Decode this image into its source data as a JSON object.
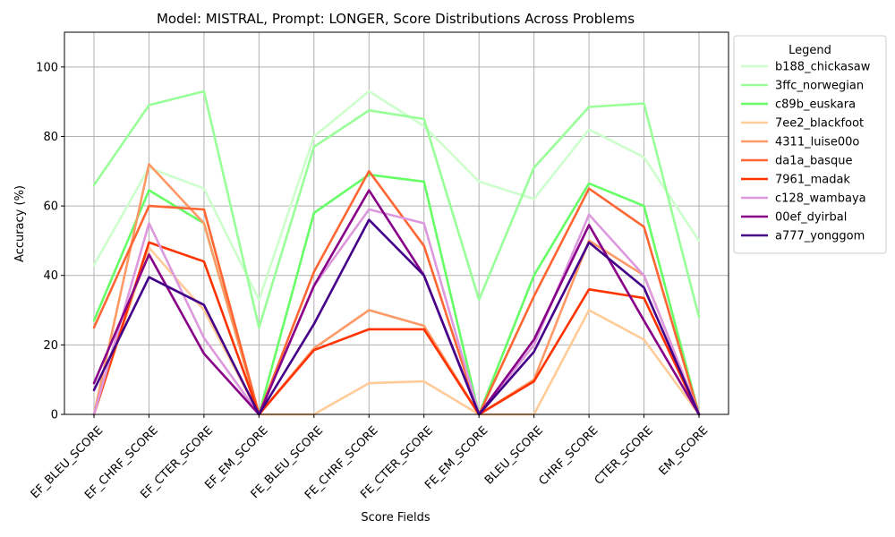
{
  "chart_data": {
    "type": "line",
    "title": "Model: MISTRAL, Prompt: LONGER, Score Distributions Across Problems",
    "xlabel": "Score Fields",
    "ylabel": "Accuracy (%)",
    "ylim": [
      0,
      110
    ],
    "yticks": [
      0,
      20,
      40,
      60,
      80,
      100
    ],
    "grid": true,
    "legend": {
      "title": "Legend",
      "placement": "outside-right"
    },
    "categories": [
      "EF_BLEU_SCORE",
      "EF_CHRF_SCORE",
      "EF_CTER_SCORE",
      "EF_EM_SCORE",
      "FE_BLEU_SCORE",
      "FE_CHRF_SCORE",
      "FE_CTER_SCORE",
      "FE_EM_SCORE",
      "BLEU_SCORE",
      "CHRF_SCORE",
      "CTER_SCORE",
      "EM_SCORE"
    ],
    "series": [
      {
        "name": "b188_chickasaw",
        "color": "#ccffcc",
        "values": [
          43,
          71,
          65,
          33,
          80,
          93,
          83,
          67,
          62,
          82,
          74,
          50
        ]
      },
      {
        "name": "3ffc_norwegian",
        "color": "#99ff99",
        "values": [
          66,
          89,
          93,
          25,
          77,
          87.5,
          85,
          33,
          71,
          88.5,
          89.5,
          28
        ]
      },
      {
        "name": "c89b_euskara",
        "color": "#66ff66",
        "values": [
          27,
          64.5,
          55,
          0,
          58,
          69,
          67,
          0,
          40,
          66.5,
          60,
          0
        ]
      },
      {
        "name": "7ee2_blackfoot",
        "color": "#ffcc99",
        "values": [
          0,
          48,
          30,
          0,
          0,
          9,
          9.5,
          0,
          0,
          30,
          21.5,
          0
        ]
      },
      {
        "name": "4311_luise00o",
        "color": "#ff9966",
        "values": [
          0,
          72,
          55,
          0,
          19,
          30,
          25.5,
          0,
          10,
          50,
          40,
          0
        ]
      },
      {
        "name": "da1a_basque",
        "color": "#ff6633",
        "values": [
          25,
          60,
          59,
          0,
          41,
          70,
          48.5,
          0,
          34,
          65,
          54,
          0
        ]
      },
      {
        "name": "7961_madak",
        "color": "#ff3300",
        "values": [
          0,
          49.5,
          44,
          0,
          18.5,
          24.5,
          24.5,
          0,
          9.5,
          36,
          33.5,
          0
        ]
      },
      {
        "name": "c128_wambaya",
        "color": "#dd99dd",
        "values": [
          0,
          55,
          22,
          0,
          37,
          59,
          55,
          0,
          20,
          57.5,
          40,
          0
        ]
      },
      {
        "name": "00ef_dyirbal",
        "color": "#880088",
        "values": [
          9,
          46,
          17.5,
          0,
          37,
          64.5,
          40,
          0,
          21.5,
          54.5,
          27,
          0
        ]
      },
      {
        "name": "a777_yonggom",
        "color": "#440088",
        "values": [
          7,
          39.5,
          31.5,
          0,
          26,
          56,
          40,
          0,
          18,
          49.5,
          36.5,
          0
        ]
      }
    ]
  }
}
